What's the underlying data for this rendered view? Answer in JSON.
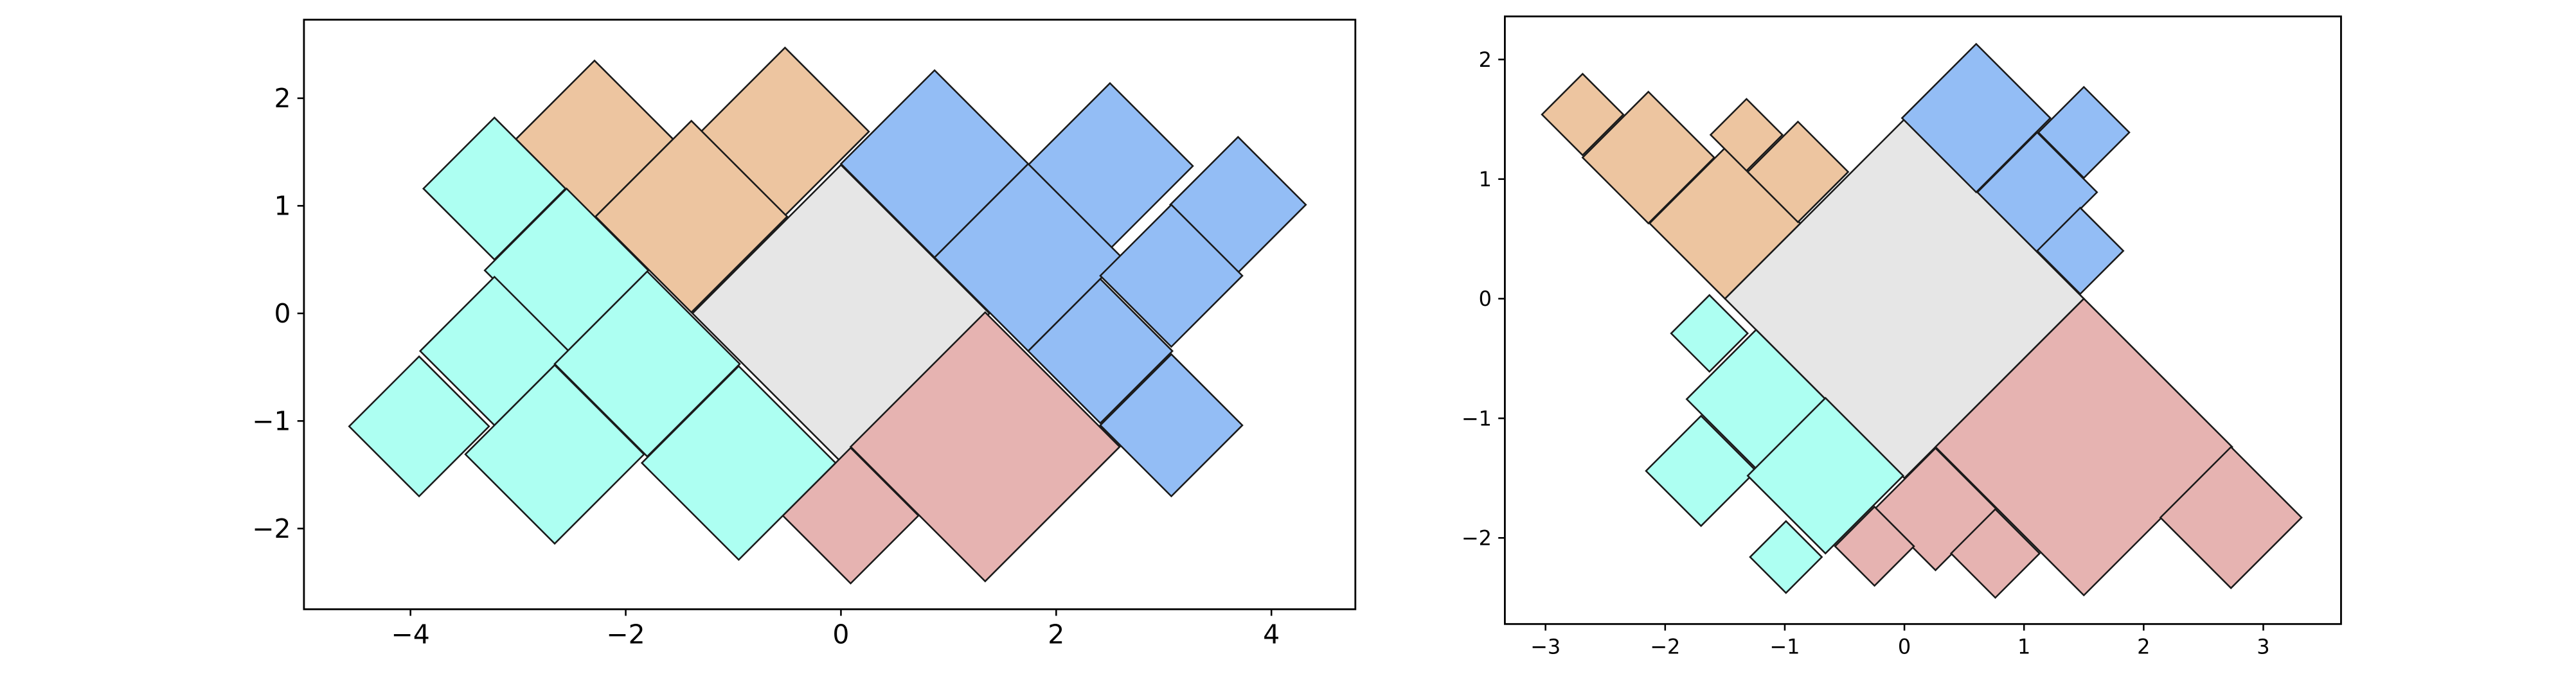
{
  "chart_data": [
    {
      "type": "squares",
      "xlim": [
        -4.99,
        4.78
      ],
      "ylim": [
        -2.75,
        2.73
      ],
      "xticks": [
        {
          "value": -4,
          "label": "−4"
        },
        {
          "value": -2,
          "label": "−2"
        },
        0,
        2,
        4
      ],
      "yticks": [
        {
          "value": -2,
          "label": "−2"
        },
        {
          "value": -1,
          "label": "−1"
        },
        0,
        1,
        2
      ],
      "series": [
        {
          "color": "#e6e6e6",
          "x": [
            0
          ],
          "y": [
            0
          ],
          "size": [
            1.38
          ]
        },
        {
          "color": "#edc5a0",
          "x": [
            -2.29,
            -0.52,
            -1.39
          ],
          "y": [
            1.62,
            1.69,
            0.9
          ],
          "size": [
            0.73,
            0.78,
            0.89
          ]
        },
        {
          "color": "#93bdf5",
          "x": [
            0.87,
            2.5,
            1.74,
            3.69,
            3.07,
            2.41,
            3.07
          ],
          "y": [
            1.39,
            1.37,
            0.52,
            1.01,
            0.35,
            -0.35,
            -1.04
          ],
          "size": [
            0.87,
            0.77,
            0.87,
            0.63,
            0.66,
            0.67,
            0.66
          ]
        },
        {
          "color": "#e6b3b1",
          "x": [
            1.34,
            0.09
          ],
          "y": [
            -1.24,
            -1.88
          ],
          "size": [
            1.25,
            0.63
          ]
        },
        {
          "color": "#adfff2",
          "x": [
            -3.22,
            -2.55,
            -3.22,
            -1.8,
            -3.92,
            -2.66,
            -0.95
          ],
          "y": [
            1.16,
            0.4,
            -0.35,
            -0.47,
            -1.05,
            -1.31,
            -1.39
          ],
          "size": [
            0.66,
            0.76,
            0.69,
            0.86,
            0.65,
            0.83,
            0.9
          ]
        }
      ]
    },
    {
      "type": "squares",
      "xlim": [
        -3.34,
        3.65
      ],
      "ylim": [
        -2.72,
        2.36
      ],
      "xticks": [
        {
          "value": -3,
          "label": "−3"
        },
        {
          "value": -2,
          "label": "−2"
        },
        {
          "value": -1,
          "label": "−1"
        },
        0,
        1,
        2,
        3
      ],
      "yticks": [
        {
          "value": -2,
          "label": "−2"
        },
        {
          "value": -1,
          "label": "−1"
        },
        0,
        1,
        2
      ],
      "series": [
        {
          "color": "#e6e6e6",
          "x": [
            0
          ],
          "y": [
            0
          ],
          "size": [
            1.5
          ]
        },
        {
          "color": "#edc5a0",
          "x": [
            -2.69,
            -2.14,
            -1.5,
            -1.32,
            -0.89
          ],
          "y": [
            1.54,
            1.18,
            0.63,
            1.37,
            1.06
          ],
          "size": [
            0.34,
            0.55,
            0.63,
            0.3,
            0.42
          ]
        },
        {
          "color": "#93bdf5",
          "x": [
            0.6,
            1.5,
            1.11,
            1.47
          ],
          "y": [
            1.51,
            1.39,
            0.89,
            0.4
          ],
          "size": [
            0.62,
            0.38,
            0.5,
            0.36
          ]
        },
        {
          "color": "#e6b3b1",
          "x": [
            1.5,
            2.73,
            0.26,
            -0.25,
            0.76
          ],
          "y": [
            -1.24,
            -1.83,
            -1.76,
            -2.07,
            -2.13
          ],
          "size": [
            1.24,
            0.59,
            0.51,
            0.33,
            0.37
          ]
        },
        {
          "color": "#adfff2",
          "x": [
            -1.63,
            -1.24,
            -1.7,
            -0.66,
            -0.99
          ],
          "y": [
            -0.29,
            -0.84,
            -1.44,
            -1.48,
            -2.16
          ],
          "size": [
            0.32,
            0.58,
            0.46,
            0.65,
            0.3
          ]
        }
      ]
    }
  ]
}
